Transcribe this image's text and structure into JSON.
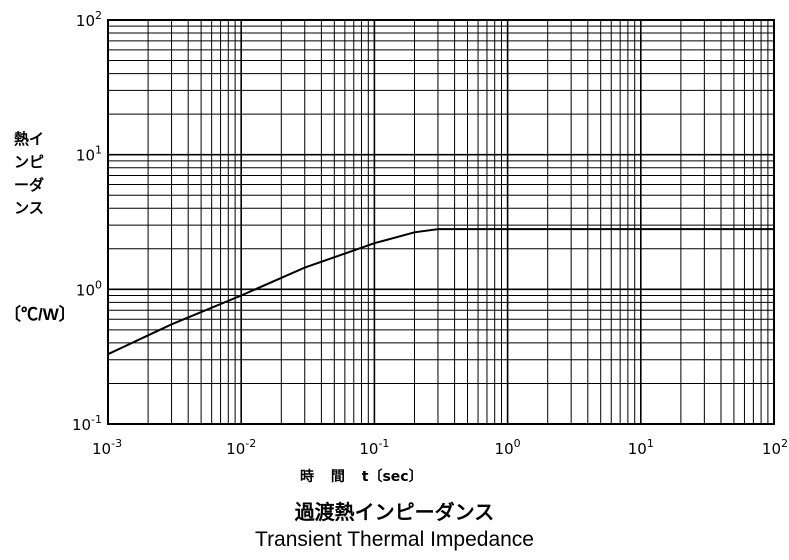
{
  "chart_data": {
    "type": "line",
    "title": "過渡熱インピーダンス",
    "subtitle": "Transient Thermal Impedance",
    "xlabel": "時 間 t〔sec〕",
    "ylabel": "熱インピーダンス",
    "yunit": "〔℃/W〕",
    "xscale": "log",
    "yscale": "log",
    "xlim": [
      0.001,
      100
    ],
    "ylim": [
      0.1,
      100
    ],
    "grid": true,
    "x_ticks": [
      {
        "base": "10",
        "exp": "-3"
      },
      {
        "base": "10",
        "exp": "-2"
      },
      {
        "base": "10",
        "exp": "-1"
      },
      {
        "base": "10",
        "exp": "0"
      },
      {
        "base": "10",
        "exp": "1"
      },
      {
        "base": "10",
        "exp": "2"
      }
    ],
    "y_ticks": [
      {
        "base": "10",
        "exp": "-1"
      },
      {
        "base": "10",
        "exp": "0"
      },
      {
        "base": "10",
        "exp": "1"
      },
      {
        "base": "10",
        "exp": "2"
      }
    ],
    "series": [
      {
        "x": [
          0.001,
          0.003,
          0.01,
          0.03,
          0.1,
          0.2,
          0.3,
          1,
          10,
          100
        ],
        "y": [
          0.33,
          0.55,
          0.9,
          1.45,
          2.2,
          2.65,
          2.8,
          2.8,
          2.8,
          2.8
        ]
      }
    ]
  }
}
